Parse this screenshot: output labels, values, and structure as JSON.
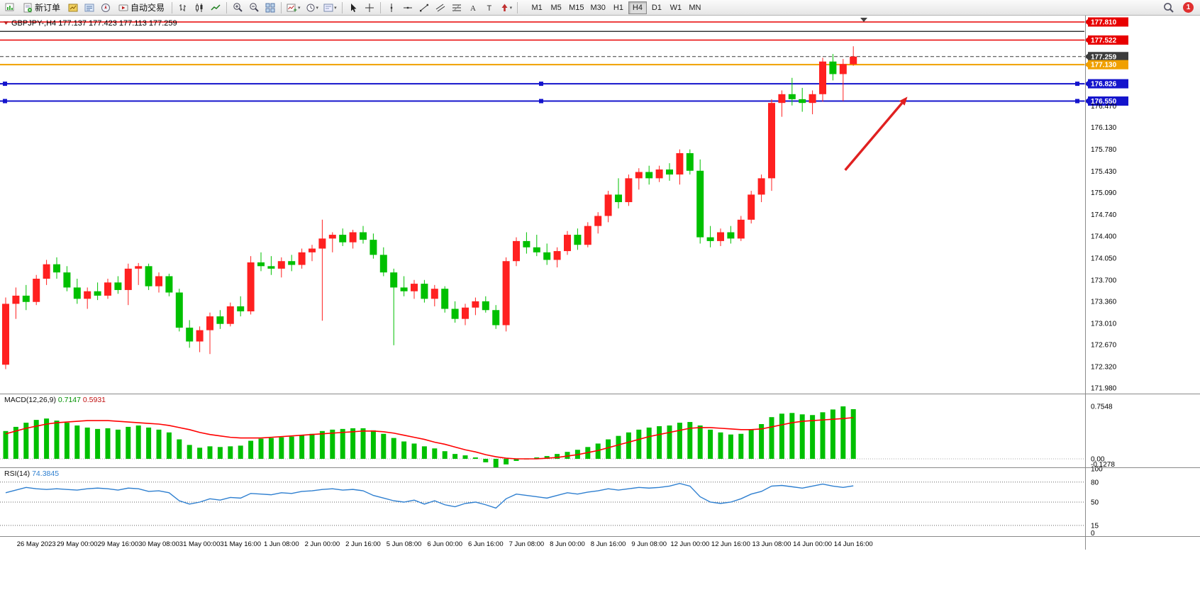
{
  "toolbar": {
    "new_order": "新订单",
    "auto_trading": "自动交易",
    "timeframes": [
      "M1",
      "M5",
      "M15",
      "M30",
      "H1",
      "H4",
      "D1",
      "W1",
      "MN"
    ],
    "active_timeframe": "H4",
    "badge_count": "1"
  },
  "chart_data": [
    {
      "type": "candlestick",
      "symbol": "GBPJPY-",
      "period": "H4",
      "title": "GBPJPY-,H4",
      "ohlc_text": "177.137 177.423 177.113 177.259",
      "current": {
        "open": 177.137,
        "high": 177.423,
        "low": 177.113,
        "close": 177.259
      },
      "bull_color": "#FF2020",
      "bear_color": "#00C000",
      "y_axis_ticks": [
        "176.470",
        "176.130",
        "175.780",
        "175.430",
        "175.090",
        "174.740",
        "174.400",
        "174.050",
        "173.700",
        "173.360",
        "173.010",
        "172.670",
        "172.320",
        "171.980"
      ],
      "levels": [
        {
          "price": 177.81,
          "label": "177.810",
          "color": "#E80000",
          "width": 1.5,
          "style": "solid",
          "box": true,
          "handles": false
        },
        {
          "price": 177.66,
          "label": "",
          "color": "#151515",
          "width": 1.2,
          "style": "solid",
          "box": false,
          "handles": false
        },
        {
          "price": 177.522,
          "label": "177.522",
          "color": "#E80000",
          "width": 1.5,
          "style": "solid",
          "box": true,
          "handles": false
        },
        {
          "price": 177.259,
          "label": "177.259",
          "color": "#3C3C3C",
          "width": 1,
          "style": "dashed",
          "box": true,
          "handles": false
        },
        {
          "price": 177.13,
          "label": "177.130",
          "color": "#F0A000",
          "width": 2,
          "style": "solid",
          "box": true,
          "handles": false
        },
        {
          "price": 176.826,
          "label": "176.826",
          "color": "#1414CC",
          "width": 2,
          "style": "solid",
          "box": true,
          "handles": true
        },
        {
          "price": 176.55,
          "label": "176.550",
          "color": "#1414CC",
          "width": 2,
          "style": "solid",
          "box": true,
          "handles": true
        }
      ],
      "x_labels": [
        "26 May 2023",
        "29 May 00:00",
        "29 May 16:00",
        "30 May 08:00",
        "31 May 00:00",
        "31 May 16:00",
        "1 Jun 08:00",
        "2 Jun 00:00",
        "2 Jun 16:00",
        "5 Jun 08:00",
        "6 Jun 00:00",
        "6 Jun 16:00",
        "7 Jun 08:00",
        "8 Jun 00:00",
        "8 Jun 16:00",
        "9 Jun 08:00",
        "12 Jun 00:00",
        "12 Jun 16:00",
        "13 Jun 08:00",
        "14 Jun 00:00",
        "14 Jun 16:00"
      ],
      "x_label_first_index": 3,
      "x_label_step": 4,
      "annotations": [
        {
          "type": "arrow",
          "from_index": 82.2,
          "from_price": 175.45,
          "to_index": 88.3,
          "to_price": 176.62,
          "color": "#E02020"
        }
      ],
      "candles": [
        [
          172.35,
          173.42,
          172.28,
          173.32
        ],
        [
          173.32,
          173.58,
          173.08,
          173.45
        ],
        [
          173.45,
          173.62,
          173.22,
          173.35
        ],
        [
          173.35,
          173.78,
          173.3,
          173.72
        ],
        [
          173.72,
          174.02,
          173.62,
          173.95
        ],
        [
          173.95,
          174.06,
          173.72,
          173.82
        ],
        [
          173.82,
          173.92,
          173.52,
          173.58
        ],
        [
          173.58,
          173.72,
          173.32,
          173.4
        ],
        [
          173.4,
          173.58,
          173.24,
          173.52
        ],
        [
          173.52,
          173.66,
          173.38,
          173.45
        ],
        [
          173.45,
          173.72,
          173.4,
          173.66
        ],
        [
          173.66,
          173.76,
          173.48,
          173.54
        ],
        [
          173.54,
          173.96,
          173.3,
          173.88
        ],
        [
          173.88,
          173.97,
          173.62,
          173.92
        ],
        [
          173.92,
          173.96,
          173.54,
          173.6
        ],
        [
          173.6,
          173.82,
          173.5,
          173.76
        ],
        [
          173.76,
          173.8,
          173.44,
          173.5
        ],
        [
          173.5,
          173.56,
          172.88,
          172.94
        ],
        [
          172.94,
          173.06,
          172.62,
          172.72
        ],
        [
          172.72,
          172.96,
          172.55,
          172.9
        ],
        [
          172.9,
          173.18,
          172.52,
          173.12
        ],
        [
          173.12,
          173.22,
          172.92,
          173.0
        ],
        [
          173.0,
          173.34,
          172.96,
          173.28
        ],
        [
          173.28,
          173.44,
          173.12,
          173.2
        ],
        [
          173.2,
          174.08,
          173.15,
          173.98
        ],
        [
          173.98,
          174.14,
          173.84,
          173.92
        ],
        [
          173.92,
          174.08,
          173.78,
          173.88
        ],
        [
          173.88,
          174.06,
          173.74,
          174.0
        ],
        [
          174.0,
          174.1,
          173.84,
          173.94
        ],
        [
          173.94,
          174.2,
          173.88,
          174.14
        ],
        [
          174.14,
          174.26,
          174.0,
          174.2
        ],
        [
          174.2,
          174.66,
          173.05,
          174.36
        ],
        [
          174.36,
          174.46,
          174.14,
          174.42
        ],
        [
          174.42,
          174.52,
          174.24,
          174.3
        ],
        [
          174.3,
          174.5,
          174.2,
          174.46
        ],
        [
          174.46,
          174.56,
          174.28,
          174.34
        ],
        [
          174.34,
          174.44,
          174.04,
          174.1
        ],
        [
          174.1,
          174.22,
          173.76,
          173.82
        ],
        [
          173.82,
          173.88,
          172.66,
          173.58
        ],
        [
          173.58,
          173.76,
          173.44,
          173.52
        ],
        [
          173.52,
          173.7,
          173.4,
          173.64
        ],
        [
          173.64,
          173.7,
          173.34,
          173.4
        ],
        [
          173.4,
          173.62,
          173.28,
          173.56
        ],
        [
          173.56,
          173.6,
          173.18,
          173.24
        ],
        [
          173.24,
          173.36,
          173.02,
          173.08
        ],
        [
          173.08,
          173.32,
          172.98,
          173.26
        ],
        [
          173.26,
          173.42,
          173.14,
          173.36
        ],
        [
          173.36,
          173.44,
          173.18,
          173.22
        ],
        [
          173.22,
          173.3,
          172.92,
          172.98
        ],
        [
          172.98,
          174.06,
          172.88,
          174.0
        ],
        [
          174.0,
          174.38,
          173.92,
          174.32
        ],
        [
          174.32,
          174.46,
          174.12,
          174.22
        ],
        [
          174.22,
          174.42,
          174.08,
          174.14
        ],
        [
          174.14,
          174.28,
          173.94,
          174.02
        ],
        [
          174.02,
          174.22,
          173.9,
          174.16
        ],
        [
          174.16,
          174.48,
          174.1,
          174.42
        ],
        [
          174.42,
          174.52,
          174.18,
          174.26
        ],
        [
          174.26,
          174.62,
          174.22,
          174.56
        ],
        [
          174.56,
          174.78,
          174.44,
          174.72
        ],
        [
          174.72,
          175.12,
          174.62,
          175.06
        ],
        [
          175.06,
          175.32,
          174.84,
          174.94
        ],
        [
          174.94,
          175.38,
          174.88,
          175.32
        ],
        [
          175.32,
          175.48,
          175.14,
          175.42
        ],
        [
          175.42,
          175.52,
          175.22,
          175.32
        ],
        [
          175.32,
          175.52,
          175.26,
          175.46
        ],
        [
          175.46,
          175.56,
          175.28,
          175.38
        ],
        [
          175.38,
          175.78,
          175.22,
          175.72
        ],
        [
          175.72,
          175.78,
          175.38,
          175.44
        ],
        [
          175.44,
          175.62,
          174.28,
          174.38
        ],
        [
          174.38,
          174.56,
          174.22,
          174.32
        ],
        [
          174.32,
          174.52,
          174.24,
          174.46
        ],
        [
          174.46,
          174.56,
          174.28,
          174.36
        ],
        [
          174.36,
          174.72,
          174.32,
          174.66
        ],
        [
          174.66,
          175.12,
          174.6,
          175.06
        ],
        [
          175.06,
          175.38,
          174.94,
          175.32
        ],
        [
          175.32,
          176.58,
          175.12,
          176.52
        ],
        [
          176.52,
          176.72,
          176.3,
          176.66
        ],
        [
          176.66,
          176.92,
          176.48,
          176.58
        ],
        [
          176.58,
          176.76,
          176.38,
          176.52
        ],
        [
          176.52,
          176.72,
          176.34,
          176.66
        ],
        [
          176.66,
          177.24,
          176.54,
          177.18
        ],
        [
          177.18,
          177.3,
          176.88,
          176.98
        ],
        [
          176.98,
          177.22,
          176.55,
          177.14
        ],
        [
          177.137,
          177.423,
          177.113,
          177.259
        ]
      ]
    },
    {
      "type": "bar",
      "name": "MACD",
      "label": "MACD(12,26,9)",
      "value_main": "0.7147",
      "value_signal": "0.5931",
      "histogram_color": "#00C000",
      "signal_color": "#FF0000",
      "axis_labels": [
        "0.7548",
        "0.00",
        "-0.1278"
      ],
      "axis_values": [
        0.7548,
        0,
        -0.1278
      ],
      "histogram": [
        0.4,
        0.46,
        0.52,
        0.56,
        0.58,
        0.55,
        0.52,
        0.48,
        0.45,
        0.43,
        0.44,
        0.42,
        0.46,
        0.48,
        0.45,
        0.42,
        0.38,
        0.28,
        0.2,
        0.16,
        0.18,
        0.17,
        0.18,
        0.19,
        0.26,
        0.29,
        0.3,
        0.31,
        0.32,
        0.34,
        0.36,
        0.4,
        0.42,
        0.43,
        0.44,
        0.44,
        0.41,
        0.36,
        0.3,
        0.25,
        0.22,
        0.18,
        0.15,
        0.11,
        0.07,
        0.05,
        0.02,
        -0.05,
        -0.1278,
        -0.08,
        -0.03,
        0.0,
        0.02,
        0.04,
        0.07,
        0.1,
        0.13,
        0.17,
        0.22,
        0.28,
        0.33,
        0.38,
        0.42,
        0.45,
        0.47,
        0.48,
        0.52,
        0.53,
        0.48,
        0.42,
        0.38,
        0.35,
        0.36,
        0.42,
        0.5,
        0.6,
        0.65,
        0.66,
        0.64,
        0.63,
        0.67,
        0.71,
        0.7548,
        0.7147
      ],
      "signal": [
        0.36,
        0.4,
        0.44,
        0.47,
        0.5,
        0.52,
        0.53,
        0.54,
        0.55,
        0.55,
        0.55,
        0.54,
        0.53,
        0.52,
        0.51,
        0.5,
        0.48,
        0.45,
        0.42,
        0.38,
        0.35,
        0.33,
        0.31,
        0.3,
        0.3,
        0.3,
        0.31,
        0.32,
        0.33,
        0.34,
        0.35,
        0.36,
        0.37,
        0.38,
        0.39,
        0.4,
        0.4,
        0.39,
        0.37,
        0.34,
        0.31,
        0.28,
        0.24,
        0.21,
        0.17,
        0.13,
        0.1,
        0.06,
        0.03,
        0.01,
        0.0,
        0.0,
        0.0,
        0.01,
        0.02,
        0.04,
        0.06,
        0.09,
        0.12,
        0.16,
        0.2,
        0.24,
        0.28,
        0.32,
        0.35,
        0.38,
        0.41,
        0.44,
        0.45,
        0.45,
        0.44,
        0.43,
        0.42,
        0.42,
        0.43,
        0.46,
        0.49,
        0.52,
        0.54,
        0.55,
        0.56,
        0.57,
        0.58,
        0.5931
      ]
    },
    {
      "type": "line",
      "name": "RSI",
      "label": "RSI(14)",
      "value": "74.3845",
      "line_color": "#2E7FD0",
      "levels": [
        80,
        50,
        15
      ],
      "axis_labels": [
        "100",
        "80",
        "50",
        "15",
        "0"
      ],
      "values": [
        64,
        68,
        72,
        70,
        69,
        70,
        69,
        68,
        70,
        71,
        70,
        68,
        71,
        70,
        66,
        67,
        64,
        52,
        47,
        50,
        55,
        53,
        57,
        56,
        63,
        62,
        61,
        64,
        63,
        66,
        67,
        69,
        70,
        68,
        69,
        67,
        60,
        56,
        52,
        50,
        53,
        47,
        52,
        46,
        43,
        48,
        50,
        46,
        41,
        55,
        62,
        60,
        58,
        56,
        60,
        64,
        62,
        65,
        67,
        70,
        68,
        70,
        72,
        71,
        72,
        74,
        78,
        74,
        58,
        50,
        48,
        50,
        55,
        62,
        66,
        74,
        75,
        73,
        71,
        74,
        77,
        74,
        72,
        74.38
      ]
    }
  ]
}
